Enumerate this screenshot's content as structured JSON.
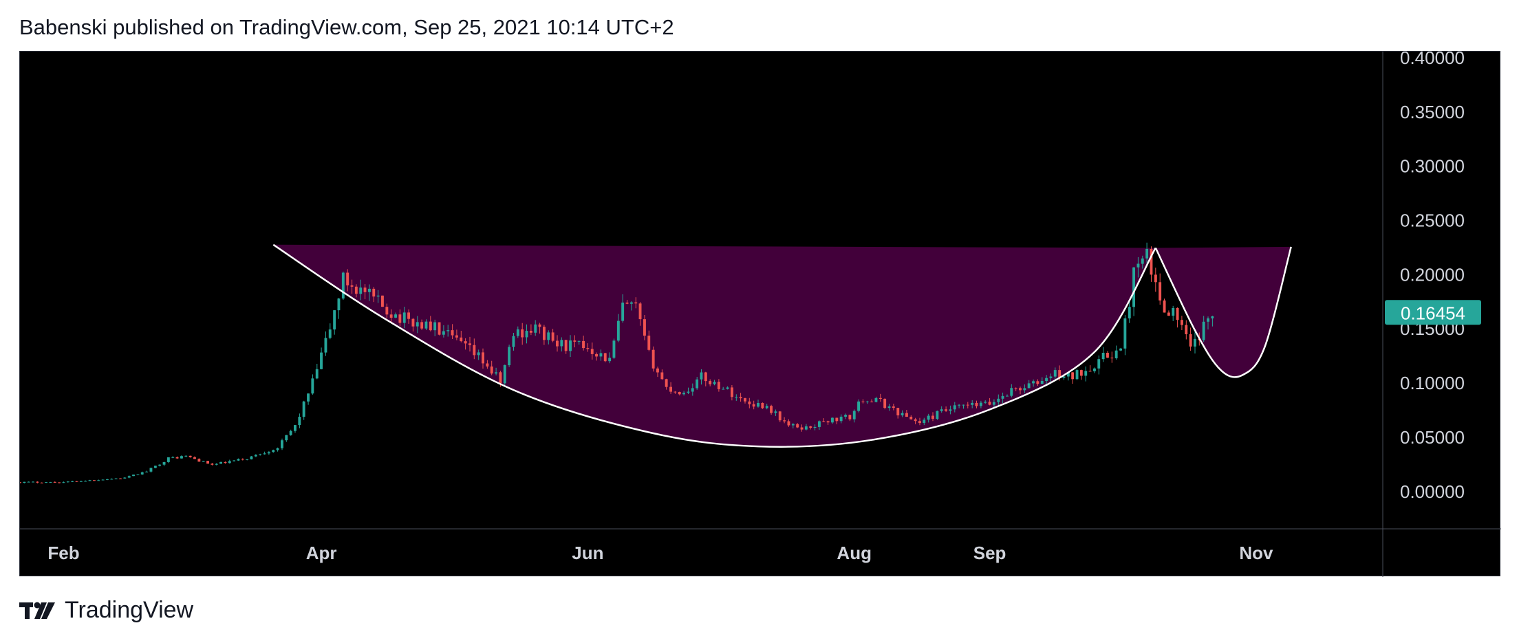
{
  "header": {
    "attribution": "Babenski published on TradingView.com, Sep 25, 2021 10:14 UTC+2"
  },
  "footer": {
    "brand": "TradingView"
  },
  "colors": {
    "background": "#000000",
    "up_candle": "#26a69a",
    "down_candle": "#ef5350",
    "cup_fill": "#42003a",
    "curve_stroke": "#ffffff",
    "price_badge": "#26a69a",
    "axis_text": "#d1d4dc",
    "axis_line": "#4a4e5a"
  },
  "chart_data": {
    "type": "candlestick",
    "title": "",
    "xlabel": "",
    "ylabel": "",
    "ylim": [
      -0.035,
      0.405
    ],
    "x_range": [
      "2021-01-22",
      "2021-11-30"
    ],
    "grid": false,
    "x_ticks": [
      {
        "date": "2021-02-01",
        "label": "Feb"
      },
      {
        "date": "2021-04-01",
        "label": "Apr"
      },
      {
        "date": "2021-06-01",
        "label": "Jun"
      },
      {
        "date": "2021-08-01",
        "label": "Aug"
      },
      {
        "date": "2021-09-01",
        "label": "Sep"
      },
      {
        "date": "2021-11-01",
        "label": "Nov"
      }
    ],
    "y_ticks": [
      {
        "value": 0.4,
        "label": "0.40000"
      },
      {
        "value": 0.35,
        "label": "0.35000"
      },
      {
        "value": 0.3,
        "label": "0.30000"
      },
      {
        "value": 0.25,
        "label": "0.25000"
      },
      {
        "value": 0.2,
        "label": "0.20000"
      },
      {
        "value": 0.15,
        "label": "0.15000"
      },
      {
        "value": 0.1,
        "label": "0.10000"
      },
      {
        "value": 0.05,
        "label": "0.05000"
      },
      {
        "value": 0.0,
        "label": "0.00000"
      }
    ],
    "last_price": {
      "value": 0.16454,
      "label": "0.16454"
    },
    "close_path": [
      [
        "2021-01-22",
        0.008
      ],
      [
        "2021-02-01",
        0.008
      ],
      [
        "2021-02-15",
        0.012
      ],
      [
        "2021-02-20",
        0.018
      ],
      [
        "2021-02-25",
        0.03
      ],
      [
        "2021-03-01",
        0.032
      ],
      [
        "2021-03-07",
        0.024
      ],
      [
        "2021-03-15",
        0.03
      ],
      [
        "2021-03-22",
        0.04
      ],
      [
        "2021-03-26",
        0.06
      ],
      [
        "2021-03-30",
        0.1
      ],
      [
        "2021-04-03",
        0.15
      ],
      [
        "2021-04-06",
        0.195
      ],
      [
        "2021-04-10",
        0.185
      ],
      [
        "2021-04-15",
        0.17
      ],
      [
        "2021-04-20",
        0.158
      ],
      [
        "2021-04-27",
        0.15
      ],
      [
        "2021-05-03",
        0.135
      ],
      [
        "2021-05-08",
        0.12
      ],
      [
        "2021-05-12",
        0.1
      ],
      [
        "2021-05-15",
        0.145
      ],
      [
        "2021-05-20",
        0.15
      ],
      [
        "2021-05-25",
        0.135
      ],
      [
        "2021-06-01",
        0.133
      ],
      [
        "2021-06-06",
        0.12
      ],
      [
        "2021-06-09",
        0.17
      ],
      [
        "2021-06-12",
        0.168
      ],
      [
        "2021-06-15",
        0.125
      ],
      [
        "2021-06-19",
        0.095
      ],
      [
        "2021-06-23",
        0.09
      ],
      [
        "2021-06-27",
        0.105
      ],
      [
        "2021-07-02",
        0.095
      ],
      [
        "2021-07-07",
        0.082
      ],
      [
        "2021-07-12",
        0.078
      ],
      [
        "2021-07-17",
        0.06
      ],
      [
        "2021-07-21",
        0.058
      ],
      [
        "2021-07-26",
        0.065
      ],
      [
        "2021-07-31",
        0.068
      ],
      [
        "2021-08-03",
        0.085
      ],
      [
        "2021-08-07",
        0.082
      ],
      [
        "2021-08-12",
        0.07
      ],
      [
        "2021-08-16",
        0.063
      ],
      [
        "2021-08-21",
        0.073
      ],
      [
        "2021-08-26",
        0.078
      ],
      [
        "2021-09-01",
        0.08
      ],
      [
        "2021-09-06",
        0.093
      ],
      [
        "2021-09-11",
        0.098
      ],
      [
        "2021-09-16",
        0.108
      ],
      [
        "2021-09-20",
        0.105
      ],
      [
        "2021-09-24",
        0.115
      ],
      [
        "2021-09-28",
        0.125
      ],
      [
        "2021-10-01",
        0.13
      ],
      [
        "2021-10-04",
        0.2
      ],
      [
        "2021-10-07",
        0.215
      ],
      [
        "2021-10-10",
        0.175
      ],
      [
        "2021-10-14",
        0.16
      ],
      [
        "2021-10-17",
        0.13
      ],
      [
        "2021-10-20",
        0.15
      ],
      [
        "2021-10-22",
        0.16454
      ]
    ],
    "annotations": {
      "resistance_line": {
        "start": [
          "2021-03-21",
          0.227
        ],
        "end": [
          "2021-10-09",
          0.224
        ],
        "right_end": [
          "2021-11-09",
          0.225
        ]
      },
      "cup_curve": [
        [
          "2021-03-21",
          0.227
        ],
        [
          "2021-04-15",
          0.16
        ],
        [
          "2021-05-15",
          0.093
        ],
        [
          "2021-06-15",
          0.054
        ],
        [
          "2021-07-10",
          0.041
        ],
        [
          "2021-08-05",
          0.047
        ],
        [
          "2021-09-01",
          0.075
        ],
        [
          "2021-09-25",
          0.128
        ],
        [
          "2021-10-09",
          0.224
        ]
      ],
      "handle_curve": [
        [
          "2021-10-09",
          0.224
        ],
        [
          "2021-10-18",
          0.148
        ],
        [
          "2021-10-24",
          0.111
        ],
        [
          "2021-10-29",
          0.107
        ],
        [
          "2021-11-03",
          0.133
        ],
        [
          "2021-11-09",
          0.225
        ]
      ]
    }
  }
}
